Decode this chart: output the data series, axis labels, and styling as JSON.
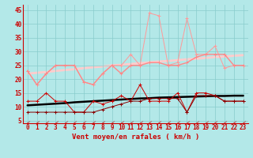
{
  "x": [
    0,
    1,
    2,
    3,
    4,
    5,
    6,
    7,
    8,
    9,
    10,
    11,
    12,
    13,
    14,
    15,
    16,
    17,
    18,
    19,
    20,
    21,
    22,
    23
  ],
  "series": {
    "light_pink_upper": [
      23,
      18,
      22,
      25,
      25,
      25,
      19,
      18,
      22,
      25,
      25,
      29,
      25,
      44,
      43,
      25,
      26,
      42,
      29,
      29,
      32,
      24,
      25,
      25
    ],
    "light_pink_lower": [
      23,
      18,
      22,
      25,
      25,
      25,
      19,
      18,
      22,
      25,
      22,
      25,
      25,
      26,
      26,
      25,
      25,
      26,
      28,
      29,
      29,
      29,
      25,
      25
    ],
    "dark_red_upper": [
      12,
      12,
      15,
      12,
      12,
      8,
      8,
      12,
      11,
      12,
      14,
      12,
      18,
      12,
      12,
      12,
      15,
      8,
      15,
      15,
      14,
      12,
      12,
      12
    ],
    "dark_red_lower": [
      8,
      8,
      8,
      8,
      8,
      8,
      8,
      8,
      9,
      10,
      11,
      12,
      12,
      13,
      13,
      13,
      13,
      8,
      14,
      14,
      14,
      12,
      12,
      12
    ],
    "trend_light_pink": [
      22,
      22.3,
      22.6,
      23.0,
      23.3,
      23.6,
      24.0,
      24.3,
      24.6,
      25.0,
      25.2,
      25.5,
      25.8,
      26.1,
      26.4,
      26.6,
      26.9,
      27.2,
      27.4,
      27.7,
      28.0,
      28.2,
      28.5,
      28.7
    ],
    "trend_dark_red": [
      10.5,
      10.7,
      10.9,
      11.1,
      11.3,
      11.6,
      11.8,
      12.0,
      12.2,
      12.4,
      12.6,
      12.8,
      13.0,
      13.1,
      13.3,
      13.4,
      13.5,
      13.6,
      13.7,
      13.8,
      13.9,
      13.9,
      14.0,
      14.0
    ]
  },
  "colors": {
    "light_pink_upper": "#ff9999",
    "light_pink_lower": "#ffbbbb",
    "dark_red_upper": "#cc0000",
    "dark_red_lower": "#880000",
    "trend_light_pink": "#ffcccc",
    "trend_dark_red": "#000000"
  },
  "bg_color": "#b3e8e8",
  "grid_color": "#88cccc",
  "xlabel": "Vent moyen/en rafales ( km/h )",
  "ylim": [
    4,
    47
  ],
  "yticks": [
    5,
    10,
    15,
    20,
    25,
    30,
    35,
    40,
    45
  ],
  "xlim": [
    -0.5,
    23.5
  ],
  "axis_fontsize": 6.5,
  "tick_fontsize": 5.5
}
